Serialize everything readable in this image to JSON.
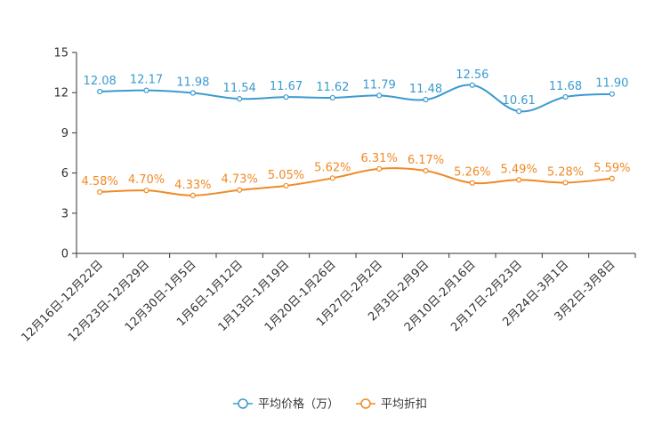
{
  "chart_data": {
    "type": "line",
    "title": "",
    "xlabel": "",
    "ylabel": "",
    "ylim": [
      0,
      15
    ],
    "yticks": [
      0,
      3,
      6,
      9,
      12,
      15
    ],
    "legend_position": "bottom-center",
    "categories": [
      "12月16日-12月22日",
      "12月23日-12月29日",
      "12月30日-1月5日",
      "1月6日-1月12日",
      "1月13日-1月19日",
      "1月20日-1月26日",
      "1月27日-2月2日",
      "2月3日-2月9日",
      "2月10日-2月16日",
      "2月17日-2月23日",
      "2月24日-3月1日",
      "3月2日-3月8日"
    ],
    "series": [
      {
        "name": "平均价格（万）",
        "color": "#3a9bd0",
        "values": [
          12.08,
          12.17,
          11.98,
          11.54,
          11.67,
          11.62,
          11.79,
          11.48,
          12.56,
          10.61,
          11.68,
          11.9
        ],
        "labels": [
          "12.08",
          "12.17",
          "11.98",
          "11.54",
          "11.67",
          "11.62",
          "11.79",
          "11.48",
          "12.56",
          "10.61",
          "11.68",
          "11.90"
        ]
      },
      {
        "name": "平均折扣",
        "color": "#f08a24",
        "values": [
          4.58,
          4.7,
          4.33,
          4.73,
          5.05,
          5.62,
          6.31,
          6.17,
          5.26,
          5.49,
          5.28,
          5.59
        ],
        "labels": [
          "4.58%",
          "4.70%",
          "4.33%",
          "4.73%",
          "5.05%",
          "5.62%",
          "6.31%",
          "6.17%",
          "5.26%",
          "5.49%",
          "5.28%",
          "5.59%"
        ]
      }
    ]
  }
}
